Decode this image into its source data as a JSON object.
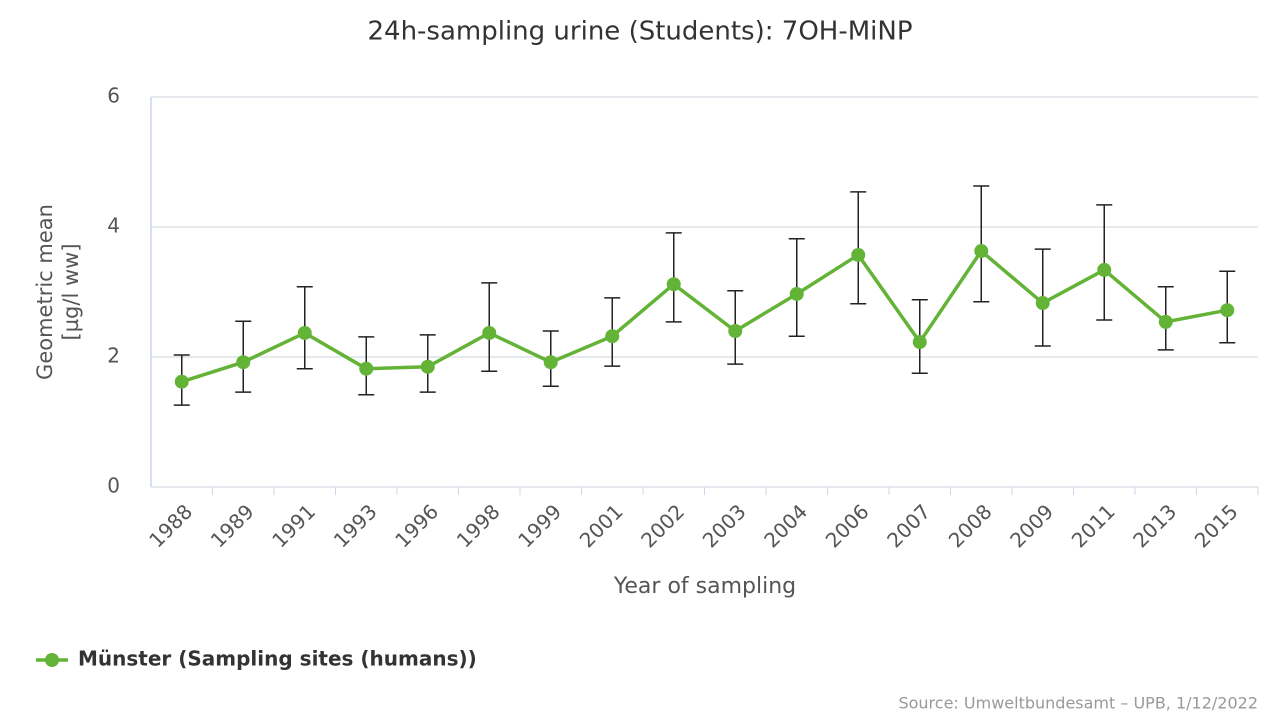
{
  "chart_data": {
    "type": "line",
    "title": "24h-sampling urine (Students): 7OH-MiNP",
    "x_label": "Year of sampling",
    "y_label_lines": [
      "Geometric mean",
      "[µg/l ww]"
    ],
    "source": "Source: Umweltbundesamt – UPB, 1/12/2022",
    "categories": [
      "1988",
      "1989",
      "1991",
      "1993",
      "1996",
      "1998",
      "1999",
      "2001",
      "2002",
      "2003",
      "2004",
      "2006",
      "2007",
      "2008",
      "2009",
      "2011",
      "2013",
      "2015"
    ],
    "series": [
      {
        "name": "Münster (Sampling sites (humans))",
        "color": "#63b337",
        "values": [
          1.62,
          1.92,
          2.37,
          1.82,
          1.85,
          2.37,
          1.92,
          2.32,
          3.12,
          2.4,
          2.97,
          3.57,
          2.23,
          3.63,
          2.83,
          3.34,
          2.54,
          2.72
        ],
        "upper": [
          2.03,
          2.55,
          3.08,
          2.31,
          2.34,
          3.14,
          2.4,
          2.91,
          3.91,
          3.02,
          3.82,
          4.54,
          2.88,
          4.63,
          3.66,
          4.34,
          3.08,
          3.32
        ],
        "lower": [
          1.26,
          1.46,
          1.82,
          1.42,
          1.46,
          1.78,
          1.55,
          1.86,
          2.54,
          1.89,
          2.32,
          2.82,
          1.75,
          2.85,
          2.17,
          2.57,
          2.11,
          2.22
        ]
      }
    ],
    "ylim": [
      0,
      6
    ],
    "yticks": [
      0,
      2,
      4,
      6
    ],
    "grid": true,
    "legend": "bottom-left"
  }
}
